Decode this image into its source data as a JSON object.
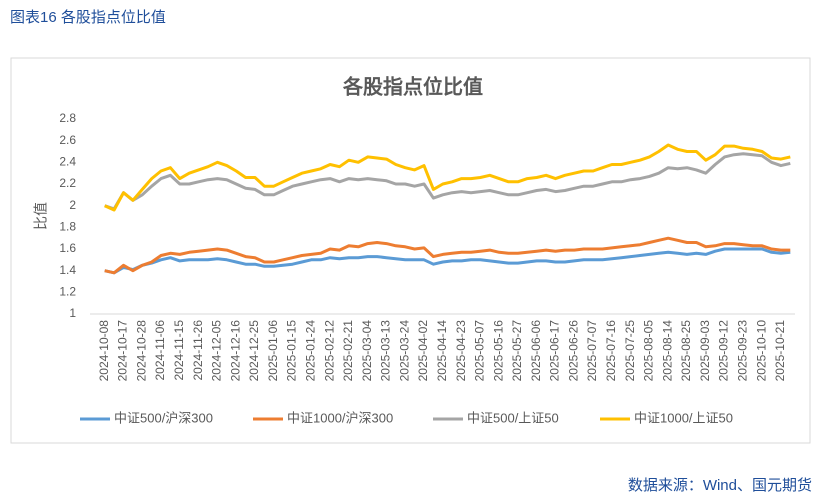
{
  "header": {
    "title": "图表16 各股指点位比值"
  },
  "footer": {
    "source": "数据来源：Wind、国元期货"
  },
  "chart_data": {
    "type": "line",
    "title": "各股指点位比值",
    "y_label": "比值",
    "categories": [
      "2024-10-08",
      null,
      "2024-10-17",
      null,
      "2024-10-28",
      null,
      "2024-11-06",
      null,
      "2024-11-15",
      null,
      "2024-11-26",
      null,
      "2024-12-05",
      null,
      "2024-12-16",
      null,
      "2024-12-25",
      null,
      "2025-01-06",
      null,
      "2025-01-15",
      null,
      "2025-01-24",
      null,
      "2025-02-12",
      null,
      "2025-02-21",
      null,
      "2025-03-04",
      null,
      "2025-03-13",
      null,
      "2025-03-24",
      null,
      "2025-04-02",
      null,
      "2025-04-14",
      null,
      "2025-04-23",
      null,
      "2025-05-07",
      null,
      "2025-05-16",
      null,
      "2025-05-27",
      null,
      "2025-06-06",
      null,
      "2025-06-17",
      null,
      "2025-06-26",
      null,
      "2025-07-07",
      null,
      "2025-07-16",
      null,
      "2025-07-25",
      null,
      "2025-08-05",
      null,
      "2025-08-14",
      null,
      "2025-08-25",
      null,
      "2025-09-03",
      null,
      "2025-09-12",
      null,
      "2025-09-23",
      null,
      "2025-10-10",
      null,
      "2025-10-21",
      null
    ],
    "series": [
      {
        "name": "中证500/沪深300",
        "color": "#5b9bd5",
        "values": [
          1.4,
          1.38,
          1.43,
          1.41,
          1.45,
          1.47,
          1.5,
          1.52,
          1.49,
          1.5,
          1.5,
          1.5,
          1.51,
          1.5,
          1.48,
          1.46,
          1.46,
          1.44,
          1.44,
          1.45,
          1.46,
          1.48,
          1.5,
          1.5,
          1.52,
          1.51,
          1.52,
          1.52,
          1.53,
          1.53,
          1.52,
          1.51,
          1.5,
          1.5,
          1.5,
          1.46,
          1.48,
          1.49,
          1.49,
          1.5,
          1.5,
          1.49,
          1.48,
          1.47,
          1.47,
          1.48,
          1.49,
          1.49,
          1.48,
          1.48,
          1.49,
          1.5,
          1.5,
          1.5,
          1.51,
          1.52,
          1.53,
          1.54,
          1.55,
          1.56,
          1.57,
          1.56,
          1.55,
          1.56,
          1.55,
          1.58,
          1.6,
          1.6,
          1.6,
          1.6,
          1.6,
          1.57,
          1.56,
          1.57
        ]
      },
      {
        "name": "中证1000/沪深300",
        "color": "#ed7d31",
        "values": [
          1.4,
          1.38,
          1.45,
          1.4,
          1.45,
          1.48,
          1.54,
          1.56,
          1.55,
          1.57,
          1.58,
          1.59,
          1.6,
          1.59,
          1.56,
          1.53,
          1.52,
          1.48,
          1.48,
          1.5,
          1.52,
          1.54,
          1.55,
          1.56,
          1.6,
          1.59,
          1.63,
          1.62,
          1.65,
          1.66,
          1.65,
          1.63,
          1.62,
          1.6,
          1.61,
          1.53,
          1.55,
          1.56,
          1.57,
          1.57,
          1.58,
          1.59,
          1.57,
          1.56,
          1.56,
          1.57,
          1.58,
          1.59,
          1.58,
          1.59,
          1.59,
          1.6,
          1.6,
          1.6,
          1.61,
          1.62,
          1.63,
          1.64,
          1.66,
          1.68,
          1.7,
          1.68,
          1.66,
          1.66,
          1.62,
          1.63,
          1.65,
          1.65,
          1.64,
          1.63,
          1.63,
          1.6,
          1.59,
          1.59
        ]
      },
      {
        "name": "中证500/上证50",
        "color": "#a5a5a5",
        "values": [
          2.0,
          1.97,
          2.12,
          2.05,
          2.1,
          2.18,
          2.25,
          2.28,
          2.2,
          2.2,
          2.22,
          2.24,
          2.25,
          2.24,
          2.2,
          2.16,
          2.15,
          2.1,
          2.1,
          2.14,
          2.18,
          2.2,
          2.22,
          2.24,
          2.25,
          2.22,
          2.25,
          2.24,
          2.25,
          2.24,
          2.23,
          2.2,
          2.2,
          2.18,
          2.2,
          2.07,
          2.1,
          2.12,
          2.13,
          2.12,
          2.13,
          2.14,
          2.12,
          2.1,
          2.1,
          2.12,
          2.14,
          2.15,
          2.13,
          2.14,
          2.16,
          2.18,
          2.18,
          2.2,
          2.22,
          2.22,
          2.24,
          2.25,
          2.27,
          2.3,
          2.35,
          2.34,
          2.35,
          2.33,
          2.3,
          2.38,
          2.45,
          2.47,
          2.48,
          2.47,
          2.46,
          2.4,
          2.37,
          2.39
        ]
      },
      {
        "name": "中证1000/上证50",
        "color": "#ffc000",
        "values": [
          2.0,
          1.96,
          2.12,
          2.05,
          2.15,
          2.25,
          2.32,
          2.35,
          2.25,
          2.3,
          2.33,
          2.36,
          2.4,
          2.37,
          2.32,
          2.26,
          2.26,
          2.18,
          2.18,
          2.22,
          2.26,
          2.3,
          2.32,
          2.34,
          2.38,
          2.36,
          2.42,
          2.4,
          2.45,
          2.44,
          2.43,
          2.38,
          2.35,
          2.33,
          2.37,
          2.15,
          2.2,
          2.22,
          2.25,
          2.25,
          2.26,
          2.28,
          2.25,
          2.22,
          2.22,
          2.25,
          2.26,
          2.28,
          2.25,
          2.28,
          2.3,
          2.32,
          2.32,
          2.35,
          2.38,
          2.38,
          2.4,
          2.42,
          2.45,
          2.5,
          2.56,
          2.52,
          2.5,
          2.5,
          2.42,
          2.47,
          2.55,
          2.55,
          2.53,
          2.52,
          2.5,
          2.44,
          2.43,
          2.45
        ]
      }
    ],
    "ylim": [
      1,
      2.8
    ],
    "yticks": [
      1,
      1.2,
      1.4,
      1.6,
      1.8,
      2,
      2.2,
      2.4,
      2.6,
      2.8
    ],
    "grid": false,
    "legend": "bottom"
  }
}
